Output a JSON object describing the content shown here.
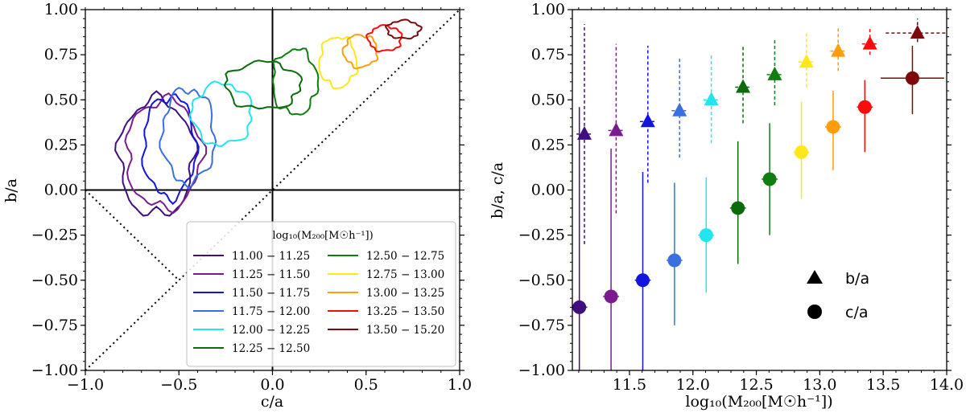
{
  "chart_data": [
    {
      "type": "contour",
      "xlabel": "c/a",
      "ylabel": "b/a",
      "xlim": [
        -1.0,
        1.0
      ],
      "ylim": [
        -1.0,
        1.0
      ],
      "xticks": [
        "−1.0",
        "−0.5",
        "0.0",
        "0.5",
        "1.0"
      ],
      "yticks": [
        "−1.00",
        "−0.75",
        "−0.50",
        "−0.25",
        "0.00",
        "0.25",
        "0.50",
        "0.75",
        "1.00"
      ],
      "legend_title": "log₁₀(M₂₀₀[M☉h⁻¹])",
      "legend_position": "lower-right",
      "series": [
        {
          "name": "11.00 − 11.25",
          "color": "#3f0f7f",
          "contour_center": [
            -0.62,
            0.18
          ],
          "contour_radius": [
            0.2,
            0.32
          ]
        },
        {
          "name": "11.25 − 11.50",
          "color": "#7b1b8f",
          "contour_center": [
            -0.58,
            0.2
          ],
          "contour_radius": [
            0.2,
            0.3
          ]
        },
        {
          "name": "11.50 − 11.75",
          "color": "#1414e0",
          "contour_center": [
            -0.55,
            0.24
          ],
          "contour_radius": [
            0.14,
            0.28
          ]
        },
        {
          "name": "11.75 − 12.00",
          "color": "#3a6fe0",
          "contour_center": [
            -0.45,
            0.3
          ],
          "contour_radius": [
            0.14,
            0.26
          ]
        },
        {
          "name": "12.00 − 12.25",
          "color": "#22e5ef",
          "contour_center": [
            -0.27,
            0.42
          ],
          "contour_radius": [
            0.16,
            0.17
          ]
        },
        {
          "name": "12.25 − 12.50",
          "color": "#0a6b0a",
          "contour_center": [
            -0.05,
            0.58
          ],
          "contour_radius": [
            0.2,
            0.13
          ]
        },
        {
          "name": "12.50 − 12.75",
          "color": "#0f7d0f",
          "contour_center": [
            0.12,
            0.6
          ],
          "contour_radius": [
            0.12,
            0.18
          ]
        },
        {
          "name": "12.75 − 13.00",
          "color": "#ffe81a",
          "contour_center": [
            0.35,
            0.71
          ],
          "contour_radius": [
            0.1,
            0.14
          ]
        },
        {
          "name": "13.00 − 13.25",
          "color": "#ff9d0a",
          "contour_center": [
            0.47,
            0.77
          ],
          "contour_radius": [
            0.09,
            0.09
          ]
        },
        {
          "name": "13.25 − 13.50",
          "color": "#ff0a0a",
          "contour_center": [
            0.6,
            0.84
          ],
          "contour_radius": [
            0.09,
            0.07
          ]
        },
        {
          "name": "13.50 − 15.20",
          "color": "#7d0a0a",
          "contour_center": [
            0.7,
            0.89
          ],
          "contour_radius": [
            0.09,
            0.05
          ]
        }
      ]
    },
    {
      "type": "errorbar",
      "xlabel": "log₁₀(M₂₀₀[M☉h⁻¹])",
      "ylabel": "b/a, c/a",
      "xlim": [
        11.05,
        14.0
      ],
      "ylim": [
        -1.0,
        1.0
      ],
      "xticks": [
        11.5,
        12.0,
        12.5,
        13.0,
        13.5,
        14.0
      ],
      "xtick_labels": [
        "11.5",
        "12.0",
        "12.5",
        "13.0",
        "13.5",
        "14.0"
      ],
      "yticks": [
        "−1.00",
        "−0.75",
        "−0.50",
        "−0.25",
        "0.00",
        "0.25",
        "0.50",
        "0.75",
        "1.00"
      ],
      "legend": [
        {
          "marker": "triangle",
          "label": "b/a"
        },
        {
          "marker": "circle",
          "label": "c/a"
        }
      ],
      "legend_position": "lower-right",
      "x": [
        11.125,
        11.375,
        11.625,
        11.875,
        12.125,
        12.375,
        12.625,
        12.875,
        13.125,
        13.375,
        13.75
      ],
      "colors": [
        "#3f0f7f",
        "#7b1b8f",
        "#1414e0",
        "#3a6fe0",
        "#22e5ef",
        "#0a6b0a",
        "#0f7d0f",
        "#ffe81a",
        "#ff9d0a",
        "#ff0a0a",
        "#7d0a0a"
      ],
      "series": [
        {
          "name": "b/a",
          "marker": "triangle",
          "linestyle": "dashed",
          "values": [
            0.31,
            0.33,
            0.38,
            0.44,
            0.5,
            0.57,
            0.64,
            0.71,
            0.77,
            0.81,
            0.87
          ],
          "err_low": [
            0.61,
            0.46,
            0.34,
            0.26,
            0.24,
            0.2,
            0.17,
            0.14,
            0.11,
            0.06,
            0.05
          ],
          "err_high": [
            0.61,
            0.48,
            0.42,
            0.29,
            0.25,
            0.23,
            0.19,
            0.17,
            0.14,
            0.09,
            0.08
          ]
        },
        {
          "name": "c/a",
          "marker": "circle",
          "linestyle": "solid",
          "values": [
            -0.65,
            -0.59,
            -0.5,
            -0.39,
            -0.25,
            -0.1,
            0.06,
            0.21,
            0.35,
            0.46,
            0.62
          ],
          "err_low": [
            0.4,
            0.41,
            0.5,
            0.36,
            0.32,
            0.31,
            0.31,
            0.26,
            0.24,
            0.25,
            0.2
          ],
          "err_high": [
            1.11,
            0.82,
            0.6,
            0.43,
            0.32,
            0.37,
            0.31,
            0.28,
            0.2,
            0.15,
            0.18
          ]
        }
      ]
    }
  ]
}
